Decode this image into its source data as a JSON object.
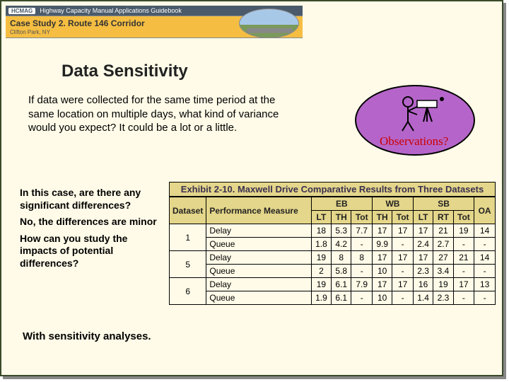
{
  "header": {
    "hcmag_tag": "HCMAG",
    "hcmag_text": "Highway Capacity Manual Applications Guidebook",
    "case_title": "Case Study 2. Route 146 Corridor",
    "case_sub": "Clifton Park, NY"
  },
  "title": "Data Sensitivity",
  "intro": {
    "question": "If data were collected for the same time period at the same location on multiple days, what kind of variance would you expect?",
    "answer": "It could be a lot or a little."
  },
  "oval_label": "Observations?",
  "qa": {
    "q1": "In this case, are there any significant differences?",
    "a1": "No, the differences are minor",
    "q2": "How can you study the impacts of potential differences?"
  },
  "final": "With sensitivity analyses.",
  "exhibit": {
    "title": "Exhibit 2-10. Maxwell Drive Comparative Results from Three Datasets",
    "group_headers": [
      "Dataset",
      "Performance Measure",
      "EB",
      "WB",
      "SB",
      "OA"
    ],
    "sub_headers": [
      "LT",
      "TH",
      "Tot",
      "TH",
      "Tot",
      "LT",
      "RT",
      "Tot"
    ],
    "rows": [
      {
        "ds": "1",
        "pm": "Delay",
        "vals": [
          "18",
          "5.3",
          "7.7",
          "17",
          "17",
          "17",
          "21",
          "19",
          "14"
        ]
      },
      {
        "ds": "",
        "pm": "Queue",
        "vals": [
          "1.8",
          "4.2",
          "-",
          "9.9",
          "-",
          "2.4",
          "2.7",
          "-",
          "-"
        ]
      },
      {
        "ds": "5",
        "pm": "Delay",
        "vals": [
          "19",
          "8",
          "8",
          "17",
          "17",
          "17",
          "27",
          "21",
          "14"
        ]
      },
      {
        "ds": "",
        "pm": "Queue",
        "vals": [
          "2",
          "5.8",
          "-",
          "10",
          "-",
          "2.3",
          "3.4",
          "-",
          "-"
        ]
      },
      {
        "ds": "6",
        "pm": "Delay",
        "vals": [
          "19",
          "6.1",
          "7.9",
          "17",
          "17",
          "16",
          "19",
          "17",
          "13"
        ]
      },
      {
        "ds": "",
        "pm": "Queue",
        "vals": [
          "1.9",
          "6.1",
          "-",
          "10",
          "-",
          "1.4",
          "2.3",
          "-",
          "-"
        ]
      }
    ]
  },
  "colors": {
    "slide_bg": "#fffbe8",
    "slide_border": "#3a4a2a",
    "banner_bg": "#f5be42",
    "oval_bg": "#b565c9",
    "oval_label": "#c00",
    "table_header_bg": "#e4d68a"
  }
}
